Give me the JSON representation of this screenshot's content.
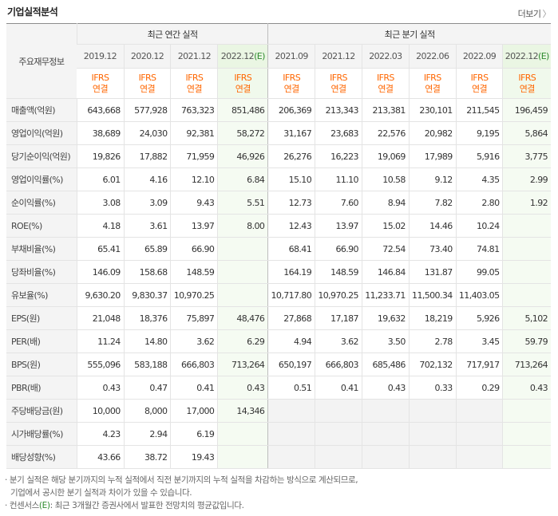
{
  "header": {
    "title": "기업실적분석",
    "more_label": "더보기",
    "more_chevron": "〉"
  },
  "table": {
    "row_header_label": "주요재무정보",
    "annual_group_label": "최근 연간 실적",
    "quarter_group_label": "최근 분기 실적",
    "periods": [
      "2019.12",
      "2020.12",
      "2021.12",
      "2022.12",
      "2021.09",
      "2021.12",
      "2022.03",
      "2022.06",
      "2022.09",
      "2022.12"
    ],
    "estimate_suffix": "(E)",
    "ifrs_label": "IFRS",
    "consolidated_label": "연결",
    "rows": [
      {
        "label": "매출액(억원)",
        "values": [
          "643,668",
          "577,928",
          "763,323",
          "851,486",
          "206,369",
          "213,343",
          "213,381",
          "230,101",
          "211,545",
          "196,459"
        ]
      },
      {
        "label": "영업이익(억원)",
        "values": [
          "38,689",
          "24,030",
          "92,381",
          "58,272",
          "31,167",
          "23,683",
          "22,576",
          "20,982",
          "9,195",
          "5,864"
        ]
      },
      {
        "label": "당기순이익(억원)",
        "values": [
          "19,826",
          "17,882",
          "71,959",
          "46,926",
          "26,276",
          "16,223",
          "19,069",
          "17,989",
          "5,916",
          "3,775"
        ]
      },
      {
        "label": "영업이익률(%)",
        "values": [
          "6.01",
          "4.16",
          "12.10",
          "6.84",
          "15.10",
          "11.10",
          "10.58",
          "9.12",
          "4.35",
          "2.99"
        ]
      },
      {
        "label": "순이익률(%)",
        "values": [
          "3.08",
          "3.09",
          "9.43",
          "5.51",
          "12.73",
          "7.60",
          "8.94",
          "7.82",
          "2.80",
          "1.92"
        ]
      },
      {
        "label": "ROE(%)",
        "values": [
          "4.18",
          "3.61",
          "13.97",
          "8.00",
          "12.43",
          "13.97",
          "15.02",
          "14.46",
          "10.24",
          ""
        ]
      },
      {
        "label": "부채비율(%)",
        "values": [
          "65.41",
          "65.89",
          "66.90",
          "",
          "68.41",
          "66.90",
          "72.54",
          "73.40",
          "74.81",
          ""
        ]
      },
      {
        "label": "당좌비율(%)",
        "values": [
          "146.09",
          "158.68",
          "148.59",
          "",
          "164.19",
          "148.59",
          "146.84",
          "131.87",
          "99.05",
          ""
        ]
      },
      {
        "label": "유보율(%)",
        "values": [
          "9,630.20",
          "9,830.37",
          "10,970.25",
          "",
          "10,717.80",
          "10,970.25",
          "11,233.71",
          "11,500.34",
          "11,403.05",
          ""
        ]
      },
      {
        "label": "EPS(원)",
        "values": [
          "21,048",
          "18,376",
          "75,897",
          "48,476",
          "27,868",
          "17,187",
          "19,632",
          "18,219",
          "5,926",
          "5,102"
        ]
      },
      {
        "label": "PER(배)",
        "values": [
          "11.24",
          "14.80",
          "3.62",
          "6.29",
          "4.94",
          "3.62",
          "3.50",
          "2.78",
          "3.45",
          "59.79"
        ]
      },
      {
        "label": "BPS(원)",
        "values": [
          "555,096",
          "583,188",
          "666,803",
          "713,264",
          "650,197",
          "666,803",
          "685,486",
          "702,132",
          "717,917",
          "713,264"
        ]
      },
      {
        "label": "PBR(배)",
        "values": [
          "0.43",
          "0.47",
          "0.41",
          "0.43",
          "0.51",
          "0.41",
          "0.43",
          "0.33",
          "0.29",
          "0.43"
        ]
      },
      {
        "label": "주당배당금(원)",
        "values": [
          "10,000",
          "8,000",
          "17,000",
          "14,346",
          "",
          "",
          "",
          "",
          "",
          ""
        ]
      },
      {
        "label": "시가배당률(%)",
        "values": [
          "4.23",
          "2.94",
          "6.19",
          "",
          "",
          "",
          "",
          "",
          "",
          ""
        ]
      },
      {
        "label": "배당성향(%)",
        "values": [
          "43.66",
          "38.72",
          "19.43",
          "",
          "",
          "",
          "",
          "",
          "",
          ""
        ]
      }
    ]
  },
  "notes": {
    "line1": "· 분기 실적은 해당 분기까지의 누적 실적에서 직전 분기까지의 누적 실적을 차감하는 방식으로 계산되므로,",
    "line2": "기업에서 공시한 분기 실적과 차이가 있을 수 있습니다.",
    "line3_prefix": "· 컨센서스",
    "line3_e": "(E)",
    "line3_suffix": ": 최근 3개월간 증권사에서 발표한 전망치의 평균값입니다."
  },
  "colors": {
    "ifrs": "#ff6600",
    "estimate": "#2e8b2e",
    "header_bg": "#f4f4f4",
    "estimate_bg": "#f0f9ec"
  }
}
